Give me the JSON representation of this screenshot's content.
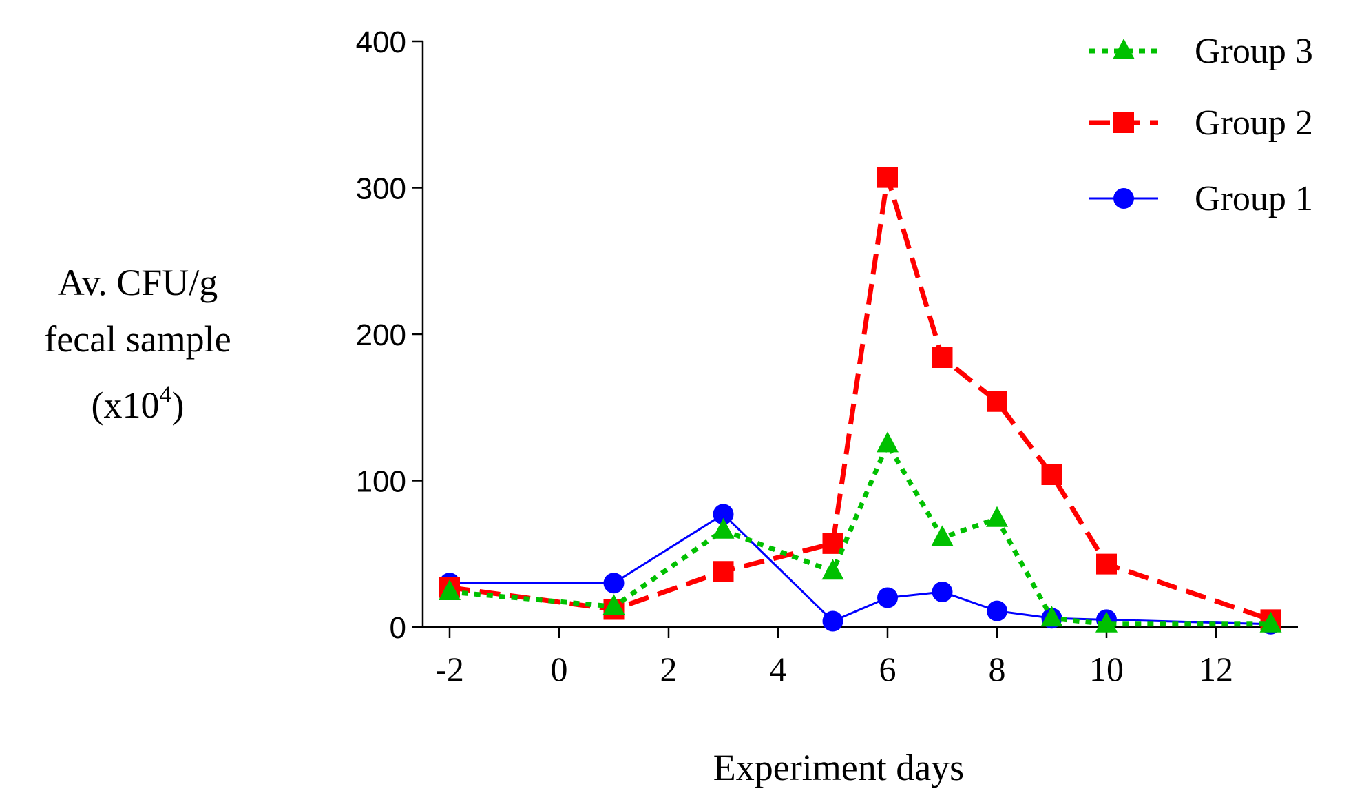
{
  "chart_data": {
    "type": "line",
    "title": "",
    "xlabel": "Experiment days",
    "ylabel_lines": [
      "Av. CFU/g",
      "fecal sample"
    ],
    "ylabel_unit": {
      "prefix": "(x10",
      "superscript": "4",
      "suffix": ")"
    },
    "xlim": [
      -2,
      13
    ],
    "ylim": [
      0,
      400
    ],
    "xticks": [
      -2,
      0,
      2,
      4,
      6,
      8,
      10,
      12
    ],
    "yticks": [
      0,
      100,
      200,
      300,
      400
    ],
    "xtick_labels": [
      "-2",
      "0",
      "2",
      "4",
      "6",
      "8",
      "10",
      "12"
    ],
    "ytick_labels": [
      "0",
      "100",
      "200",
      "300",
      "400"
    ],
    "legend_position": "top-right",
    "series": [
      {
        "name": "Group 1",
        "color": "#0000ff",
        "marker": "circle",
        "line_style": "solid",
        "x": [
          -2,
          1,
          3,
          5,
          6,
          7,
          8,
          9,
          10,
          13
        ],
        "values": [
          30,
          30,
          77,
          4,
          20,
          24,
          11,
          6,
          5,
          2
        ]
      },
      {
        "name": "Group 2",
        "color": "#ff0000",
        "marker": "square",
        "line_style": "dashed",
        "x": [
          -2,
          1,
          3,
          5,
          6,
          7,
          8,
          9,
          10,
          13
        ],
        "values": [
          27,
          12,
          38,
          57,
          307,
          184,
          154,
          104,
          43,
          5
        ]
      },
      {
        "name": "Group 3",
        "color": "#00c000",
        "marker": "triangle",
        "line_style": "dotted",
        "x": [
          -2,
          1,
          3,
          5,
          6,
          7,
          8,
          9,
          10,
          13
        ],
        "values": [
          24,
          14,
          66,
          38,
          125,
          61,
          74,
          6,
          2,
          2
        ]
      }
    ],
    "legend_order": [
      "Group 3",
      "Group 2",
      "Group 1"
    ]
  }
}
